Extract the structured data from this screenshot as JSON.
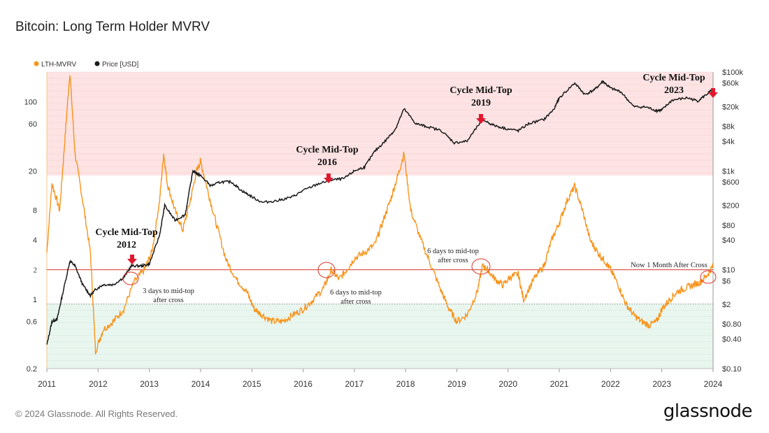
{
  "title": "Bitcoin: Long Term Holder MVRV",
  "copyright": "© 2024 Glassnode. All Rights Reserved.",
  "brand": "glassnode",
  "colors": {
    "lth_mvrv": "#F7931A",
    "price": "#1a1a1a",
    "red_zone": "#fde3e3",
    "green_zone": "#e9f6ef",
    "threshold": "#d9342b",
    "marker": "#e0182d"
  },
  "chart_data": {
    "type": "line",
    "title": "Bitcoin: Long Term Holder MVRV",
    "legend": {
      "position": "top-left",
      "items": [
        "LTH-MVRV",
        "Price [USD]"
      ]
    },
    "x_ticks": [
      "2011",
      "2012",
      "2013",
      "2014",
      "2015",
      "2016",
      "2017",
      "2018",
      "2019",
      "2020",
      "2021",
      "2022",
      "2023",
      "2024"
    ],
    "left_axis": {
      "scale": "log",
      "range": [
        0.2,
        200
      ],
      "ticks": [
        "0.2",
        "0.6",
        "1",
        "2",
        "4",
        "8",
        "20",
        "60",
        "100"
      ]
    },
    "right_axis": {
      "scale": "log",
      "range": [
        0.1,
        100000
      ],
      "ticks": [
        "$0.10",
        "$0.40",
        "$0.80",
        "$2",
        "$6",
        "$10",
        "$40",
        "$80",
        "$200",
        "$600",
        "$1k",
        "$4k",
        "$8k",
        "$20k",
        "$60k",
        "$100k"
      ]
    },
    "zones": [
      {
        "name": "high",
        "range": [
          18,
          200
        ]
      },
      {
        "name": "low",
        "range": [
          0.2,
          0.9
        ]
      }
    ],
    "threshold_line": {
      "value": 2,
      "label": "2"
    },
    "series": [
      {
        "name": "LTH-MVRV",
        "axis": "left",
        "x": [
          2011.0,
          2011.1,
          2011.25,
          2011.35,
          2011.45,
          2011.55,
          2011.7,
          2011.85,
          2011.95,
          2012.1,
          2012.3,
          2012.5,
          2012.7,
          2012.9,
          2013.05,
          2013.2,
          2013.28,
          2013.35,
          2013.5,
          2013.65,
          2013.8,
          2013.92,
          2014.0,
          2014.15,
          2014.3,
          2014.5,
          2014.7,
          2014.9,
          2015.05,
          2015.2,
          2015.4,
          2015.6,
          2015.8,
          2016.0,
          2016.2,
          2016.4,
          2016.55,
          2016.7,
          2016.85,
          2017.0,
          2017.2,
          2017.4,
          2017.55,
          2017.7,
          2017.85,
          2017.97,
          2018.1,
          2018.3,
          2018.5,
          2018.7,
          2018.85,
          2019.0,
          2019.2,
          2019.4,
          2019.5,
          2019.6,
          2019.75,
          2019.9,
          2020.05,
          2020.2,
          2020.3,
          2020.5,
          2020.7,
          2020.85,
          2021.0,
          2021.15,
          2021.3,
          2021.45,
          2021.6,
          2021.75,
          2021.9,
          2022.0,
          2022.15,
          2022.3,
          2022.45,
          2022.6,
          2022.75,
          2022.9,
          2023.0,
          2023.15,
          2023.3,
          2023.45,
          2023.6,
          2023.75,
          2023.9,
          2024.0
        ],
        "y": [
          3,
          15,
          8,
          40,
          200,
          30,
          10,
          3,
          0.3,
          0.5,
          0.6,
          0.8,
          1.5,
          2,
          3,
          10,
          30,
          15,
          8,
          5,
          10,
          20,
          25,
          12,
          6,
          2.5,
          1.6,
          1.2,
          0.8,
          0.7,
          0.6,
          0.6,
          0.7,
          0.8,
          1.0,
          1.3,
          2.0,
          1.6,
          2.0,
          2.6,
          3.0,
          3.6,
          6,
          10,
          18,
          30,
          8,
          4,
          2.2,
          1.2,
          0.8,
          0.6,
          0.7,
          1.2,
          2.2,
          2.0,
          1.6,
          1.4,
          1.7,
          1.8,
          1.0,
          1.6,
          2.2,
          4,
          6,
          10,
          14,
          8,
          4,
          3,
          2.4,
          2.0,
          1.4,
          0.9,
          0.7,
          0.6,
          0.55,
          0.6,
          0.8,
          1.0,
          1.2,
          1.3,
          1.4,
          1.5,
          1.8,
          2.2
        ]
      },
      {
        "name": "Price [USD]",
        "axis": "right",
        "x": [
          2011.0,
          2011.1,
          2011.2,
          2011.3,
          2011.45,
          2011.55,
          2011.7,
          2011.85,
          2011.95,
          2012.1,
          2012.3,
          2012.5,
          2012.65,
          2012.85,
          2013.0,
          2013.2,
          2013.3,
          2013.5,
          2013.7,
          2013.85,
          2013.92,
          2014.0,
          2014.2,
          2014.4,
          2014.6,
          2014.8,
          2015.0,
          2015.2,
          2015.5,
          2015.8,
          2016.0,
          2016.3,
          2016.55,
          2016.8,
          2017.0,
          2017.2,
          2017.4,
          2017.6,
          2017.8,
          2017.97,
          2018.2,
          2018.4,
          2018.7,
          2018.95,
          2019.2,
          2019.5,
          2019.7,
          2019.95,
          2020.2,
          2020.4,
          2020.7,
          2020.9,
          2021.0,
          2021.3,
          2021.5,
          2021.7,
          2021.85,
          2022.0,
          2022.2,
          2022.45,
          2022.7,
          2022.9,
          2023.0,
          2023.2,
          2023.5,
          2023.7,
          2023.9,
          2024.0
        ],
        "y": [
          0.3,
          0.9,
          1.0,
          3,
          15,
          12,
          5,
          3,
          4,
          5,
          5,
          7,
          12,
          12,
          13,
          50,
          200,
          100,
          130,
          1000,
          900,
          800,
          500,
          600,
          600,
          400,
          300,
          230,
          250,
          300,
          400,
          550,
          650,
          700,
          1000,
          1200,
          2500,
          4000,
          7000,
          18000,
          9000,
          8000,
          6500,
          3700,
          4000,
          11000,
          8500,
          7200,
          6500,
          9000,
          11000,
          18000,
          30000,
          60000,
          35000,
          45000,
          65000,
          47000,
          40000,
          20000,
          19500,
          16500,
          17000,
          27000,
          30000,
          26000,
          37000,
          45000
        ]
      }
    ],
    "annotations": [
      {
        "text": [
          "Cycle Mid-Top",
          "2012"
        ],
        "x": 2012.5
      },
      {
        "text": [
          "Cycle Mid-Top",
          "2016"
        ],
        "x": 2016.5
      },
      {
        "text": [
          "Cycle Mid-Top",
          "2019"
        ],
        "x": 2019.5
      },
      {
        "text": [
          "Cycle Mid-Top",
          "2023"
        ],
        "x": 2023.9
      },
      {
        "text": [
          "3 days to mid-top",
          "after cross"
        ]
      },
      {
        "text": [
          "6 days to mid-top",
          "after cross"
        ]
      },
      {
        "text": [
          "6 days to mid-top",
          "after cross"
        ]
      },
      {
        "text": [
          "Now 1 Month After Cross"
        ]
      }
    ]
  }
}
